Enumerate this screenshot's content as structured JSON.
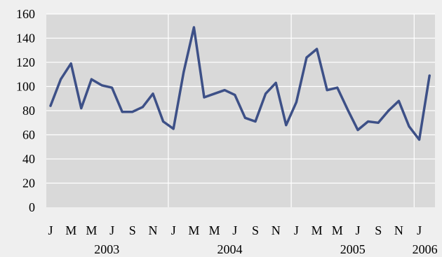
{
  "chart_data": {
    "type": "line",
    "title": "",
    "xlabel": "",
    "ylabel": "",
    "ylim": [
      0,
      160
    ],
    "yticks": [
      0,
      20,
      40,
      60,
      80,
      100,
      120,
      140,
      160
    ],
    "grid": true,
    "legend": "none",
    "x_tick_labels": [
      "J",
      "M",
      "M",
      "J",
      "S",
      "N",
      "J",
      "M",
      "M",
      "J",
      "S",
      "N",
      "J",
      "M",
      "M",
      "J",
      "S",
      "N",
      "J"
    ],
    "year_labels": [
      "2003",
      "2004",
      "2005",
      "2006"
    ],
    "series": [
      {
        "color": "#3d5087",
        "x": [
          "2003-01",
          "2003-02",
          "2003-03",
          "2003-04",
          "2003-05",
          "2003-06",
          "2003-07",
          "2003-08",
          "2003-09",
          "2003-10",
          "2003-11",
          "2003-12",
          "2004-01",
          "2004-02",
          "2004-03",
          "2004-04",
          "2004-05",
          "2004-06",
          "2004-07",
          "2004-08",
          "2004-09",
          "2004-10",
          "2004-11",
          "2004-12",
          "2005-01",
          "2005-02",
          "2005-03",
          "2005-04",
          "2005-05",
          "2005-06",
          "2005-07",
          "2005-08",
          "2005-09",
          "2005-10",
          "2005-11",
          "2005-12",
          "2006-01",
          "2006-02"
        ],
        "values": [
          84,
          106,
          119,
          82,
          106,
          101,
          99,
          79,
          79,
          83,
          94,
          71,
          65,
          112,
          149,
          91,
          94,
          97,
          93,
          74,
          71,
          94,
          103,
          68,
          87,
          124,
          131,
          97,
          99,
          81,
          64,
          71,
          70,
          80,
          88,
          67,
          56,
          109
        ]
      }
    ]
  }
}
